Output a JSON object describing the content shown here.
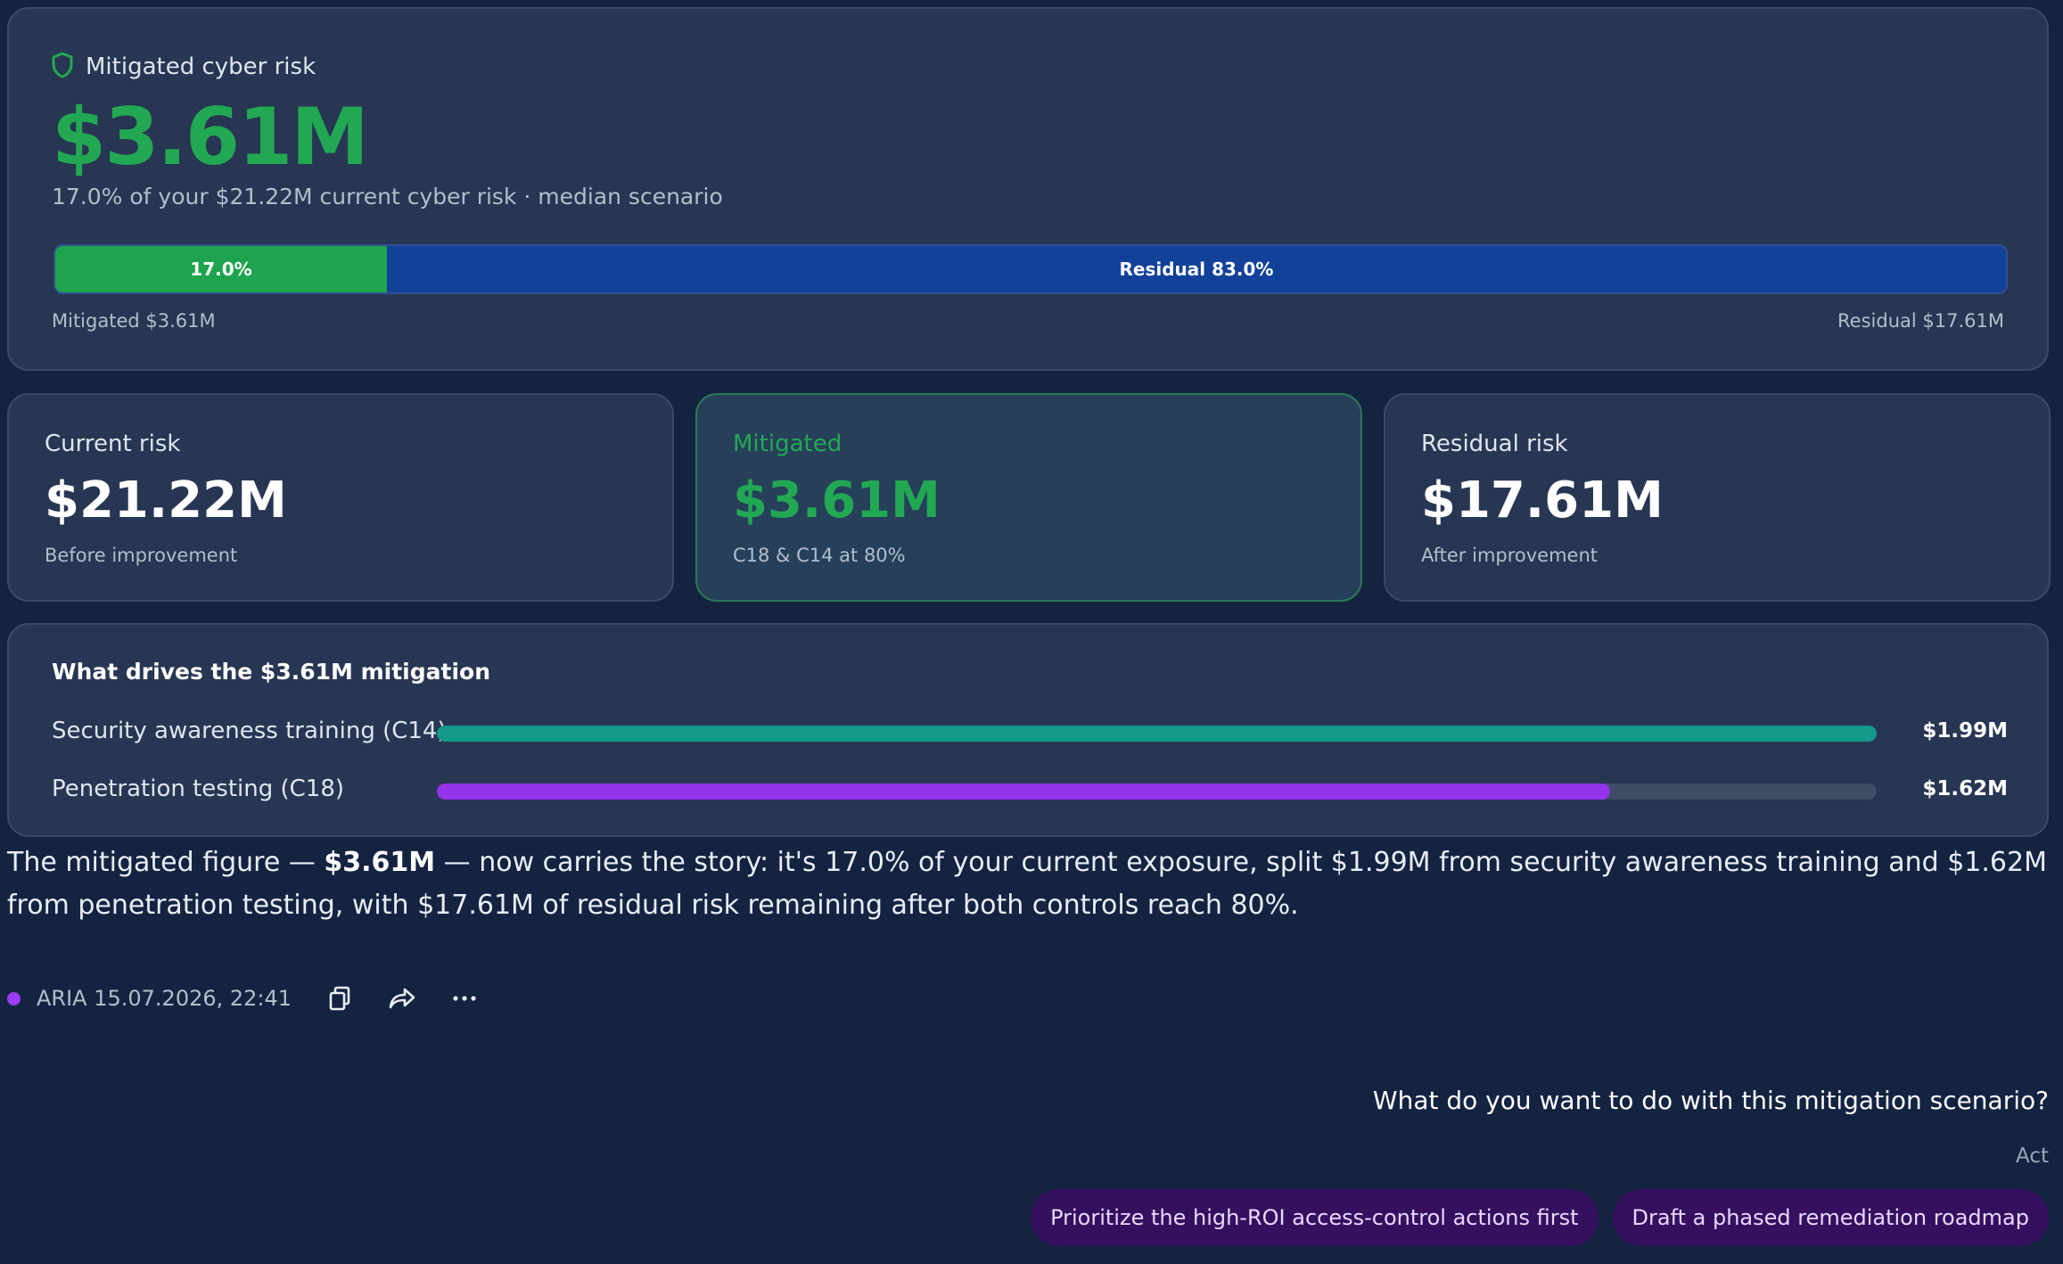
{
  "hero": {
    "label": "Mitigated cyber risk",
    "value": "$3.61M",
    "subtitle": "17.0% of your $21.22M current cyber risk · median scenario",
    "bar": {
      "mitigated_percent": 17.0,
      "mitigated_label": "17.0%",
      "residual_label": "Residual 83.0%"
    },
    "caption_left": "Mitigated $3.61M",
    "caption_right": "Residual $17.61M",
    "accent_color": "#22a853",
    "residual_color": "#12419a"
  },
  "stats": {
    "current": {
      "title": "Current risk",
      "value": "$21.22M",
      "sub": "Before improvement"
    },
    "mitigated": {
      "title": "Mitigated",
      "value": "$3.61M",
      "sub": "C18 & C14 at 80%"
    },
    "residual": {
      "title": "Residual risk",
      "value": "$17.61M",
      "sub": "After improvement"
    }
  },
  "drivers": {
    "title": "What drives the $3.61M mitigation",
    "items": [
      {
        "name": "Security awareness training (C14)",
        "value": "$1.99M",
        "fraction": 1.0,
        "color": "#14998a"
      },
      {
        "name": "Penetration testing (C18)",
        "value": "$1.62M",
        "fraction": 0.815,
        "color": "#9333ea"
      }
    ]
  },
  "message": {
    "pre": "The mitigated figure — ",
    "bold": "$3.61M",
    "post": " — now carries the story: it's 17.0% of your current exposure, split $1.99M from security awareness training and $1.62M from penetration testing, with $17.61M of residual risk remaining after both controls reach 80%."
  },
  "meta": {
    "author_line": "ARIA 15.07.2026, 22:41",
    "icons": [
      "copy-icon",
      "share-icon",
      "more-icon"
    ]
  },
  "followup": {
    "question": "What do you want to do with this mitigation scenario?",
    "act_label": "Act",
    "chips": [
      "Prioritize the high-ROI access-control actions first",
      "Draft a phased remediation roadmap"
    ]
  }
}
